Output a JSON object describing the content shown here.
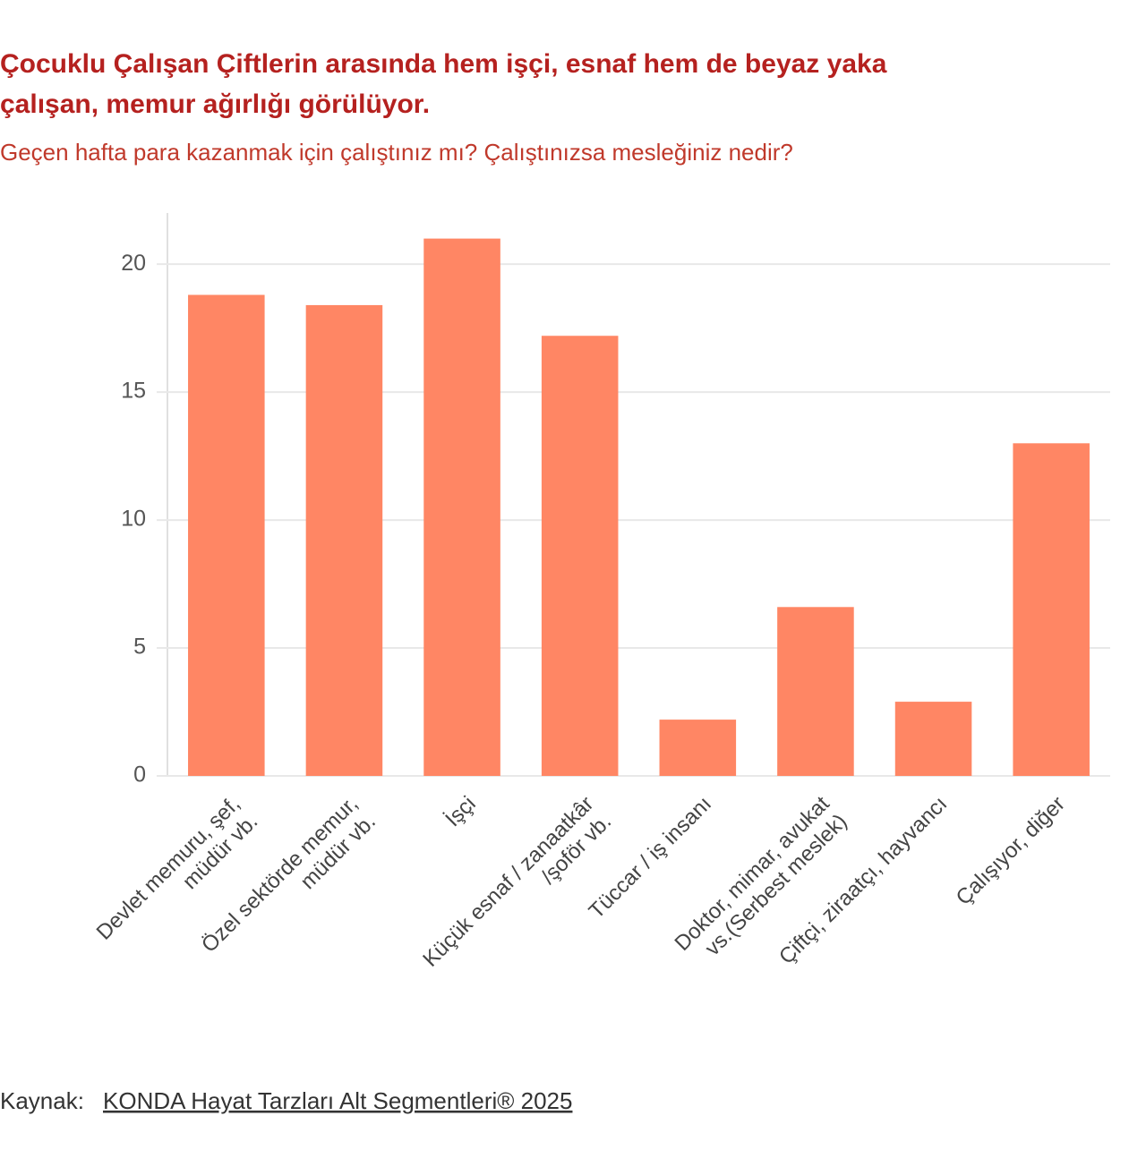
{
  "chart_data": {
    "type": "bar",
    "title": [
      "Çocuklu Çalışan Çiftlerin arasında hem işçi, esnaf hem de beyaz yaka",
      "çalışan, memur ağırlığı görülüyor."
    ],
    "subtitle": "Geçen hafta para kazanmak için çalıştınız mı? Çalıştınızsa mesleğiniz nedir?",
    "categories": [
      [
        "Devlet memuru, şef,",
        "müdür vb."
      ],
      [
        "Özel sektörde memur,",
        "müdür vb."
      ],
      [
        "İşçi"
      ],
      [
        "Küçük esnaf / zanaatkâr",
        "/şoför vb."
      ],
      [
        "Tüccar / iş insanı"
      ],
      [
        "Doktor, mimar, avukat",
        "vs.(Serbest meslek)"
      ],
      [
        "Çiftçi, ziraatçı, hayvancı"
      ],
      [
        "Çalışıyor, diğer"
      ]
    ],
    "values": [
      18.8,
      18.4,
      21.0,
      17.2,
      2.2,
      6.6,
      2.9,
      13.0
    ],
    "color": "#ff8664",
    "ylim": [
      0,
      22
    ],
    "yticks": [
      0,
      5,
      10,
      15,
      20
    ],
    "grid": true,
    "source_label": "Kaynak:",
    "source_link": "KONDA Hayat Tarzları Alt Segmentleri® 2025"
  }
}
